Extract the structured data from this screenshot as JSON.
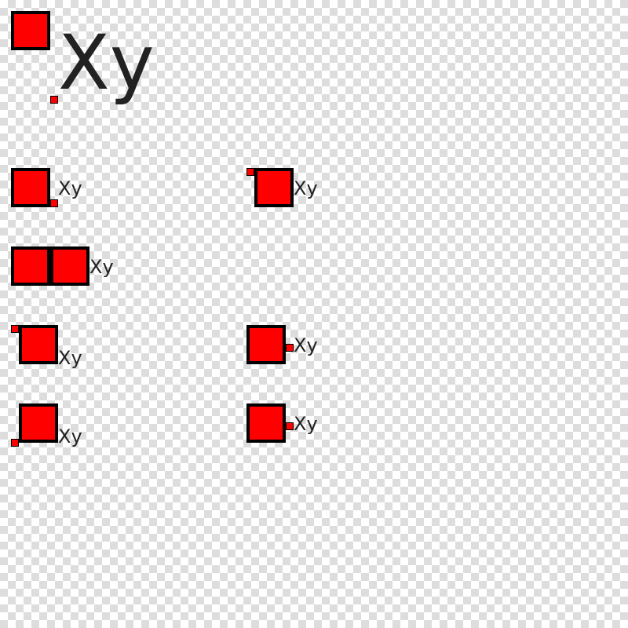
{
  "colors": {
    "fill": "#ff0000",
    "stroke": "#000000",
    "text": "#222222"
  },
  "labels": {
    "large": "Xy",
    "r2_left": "Xy",
    "r2_right": "Xy",
    "r3_left": "Xy",
    "r4_left": "Xy",
    "r4_right": "Xy",
    "r5_left": "Xy",
    "r5_right": "Xy"
  }
}
